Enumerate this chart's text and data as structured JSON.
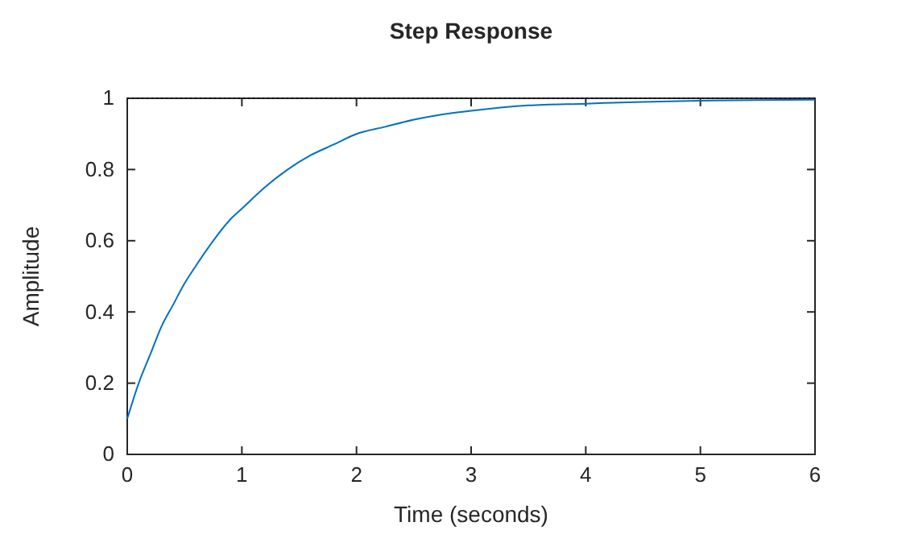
{
  "chart_data": {
    "type": "line",
    "title": "Step Response",
    "xlabel": "Time (seconds)",
    "ylabel": "Amplitude",
    "x": [
      0,
      0.1,
      0.2,
      0.3,
      0.4,
      0.5,
      0.6,
      0.75,
      0.9,
      1,
      1.2,
      1.4,
      1.6,
      1.8,
      2,
      2.25,
      2.5,
      2.75,
      3,
      3.5,
      4,
      4.5,
      5,
      5.5,
      6
    ],
    "series": [
      {
        "color": "#0072bd",
        "values": [
          0.1,
          0.2,
          0.28,
          0.36,
          0.42,
          0.48,
          0.53,
          0.6,
          0.66,
          0.69,
          0.75,
          0.8,
          0.84,
          0.87,
          0.9,
          0.92,
          0.94,
          0.955,
          0.965,
          0.98,
          0.985,
          0.99,
          0.993,
          0.995,
          0.996
        ]
      }
    ],
    "xlim": [
      0,
      6
    ],
    "xticks": [
      0,
      1,
      2,
      3,
      4,
      5,
      6
    ],
    "ylim": [
      0,
      1
    ],
    "yticks": [
      0,
      0.2,
      0.4,
      0.6,
      0.8,
      1
    ],
    "ref_lines": [
      {
        "axis": "y",
        "value": 1,
        "color": "#000000",
        "line_style": "dotted"
      }
    ],
    "grid": false,
    "marker": "none",
    "line_style": "solid"
  }
}
